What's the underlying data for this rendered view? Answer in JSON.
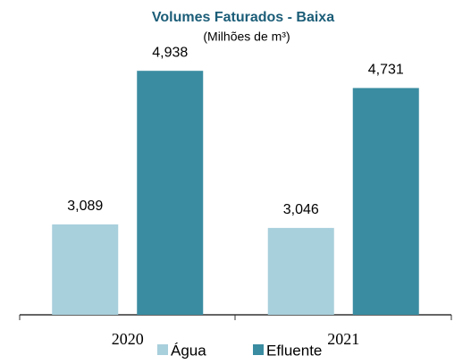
{
  "chart_data": {
    "type": "bar",
    "title": "Volumes Faturados -  Baixa",
    "subtitle": "(Milhões de m³)",
    "categories": [
      "2020",
      "2021"
    ],
    "series": [
      {
        "name": "Água",
        "color": "#a8cfdc",
        "values": [
          3089,
          3046
        ],
        "value_labels": [
          "3,089",
          "3,046"
        ]
      },
      {
        "name": "Efluente",
        "color": "#3a8ca1",
        "values": [
          4938,
          4731
        ],
        "value_labels": [
          "4,938",
          "4,731"
        ]
      }
    ],
    "ylim": [
      2000,
      5500
    ]
  }
}
